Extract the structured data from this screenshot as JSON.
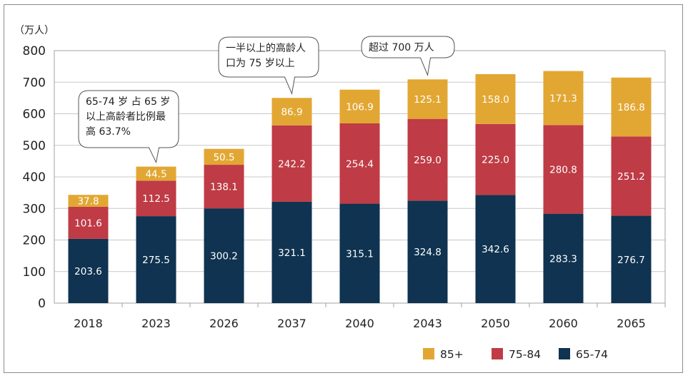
{
  "chart_data": {
    "type": "bar",
    "stacked": true,
    "unit_label": "（万人）",
    "categories": [
      "2018",
      "2023",
      "2026",
      "2037",
      "2040",
      "2043",
      "2050",
      "2060",
      "2065"
    ],
    "series": [
      {
        "name": "65-74",
        "color": "#0f3350",
        "label_color": "#ffffff",
        "values": [
          203.6,
          275.5,
          300.2,
          321.1,
          315.1,
          324.8,
          342.6,
          283.3,
          276.7
        ]
      },
      {
        "name": "75-84",
        "color": "#bf3b45",
        "label_color": "#ffffff",
        "values": [
          101.6,
          112.5,
          138.1,
          242.2,
          254.4,
          259.0,
          225.0,
          280.8,
          251.2
        ]
      },
      {
        "name": "85+",
        "color": "#e2a733",
        "label_color": "#ffffff",
        "values": [
          37.8,
          44.5,
          50.5,
          86.9,
          106.9,
          125.1,
          158.0,
          171.3,
          186.8
        ]
      }
    ],
    "ylim": [
      0,
      800
    ],
    "yticks": [
      0,
      100,
      200,
      300,
      400,
      500,
      600,
      700,
      800
    ],
    "grid": true,
    "legend_position": "bottom-right",
    "legend_order": [
      "85+",
      "75-84",
      "65-74"
    ],
    "annotations": [
      {
        "category": "2023",
        "lines": [
          "65-74 岁 占 65 岁",
          "以上高龄者比例最",
          "高 63.7%"
        ]
      },
      {
        "category": "2037",
        "lines": [
          "一半以上的高龄人",
          "口为 75 岁以上"
        ]
      },
      {
        "category": "2043",
        "lines": [
          "超过 700 万人"
        ]
      }
    ]
  }
}
